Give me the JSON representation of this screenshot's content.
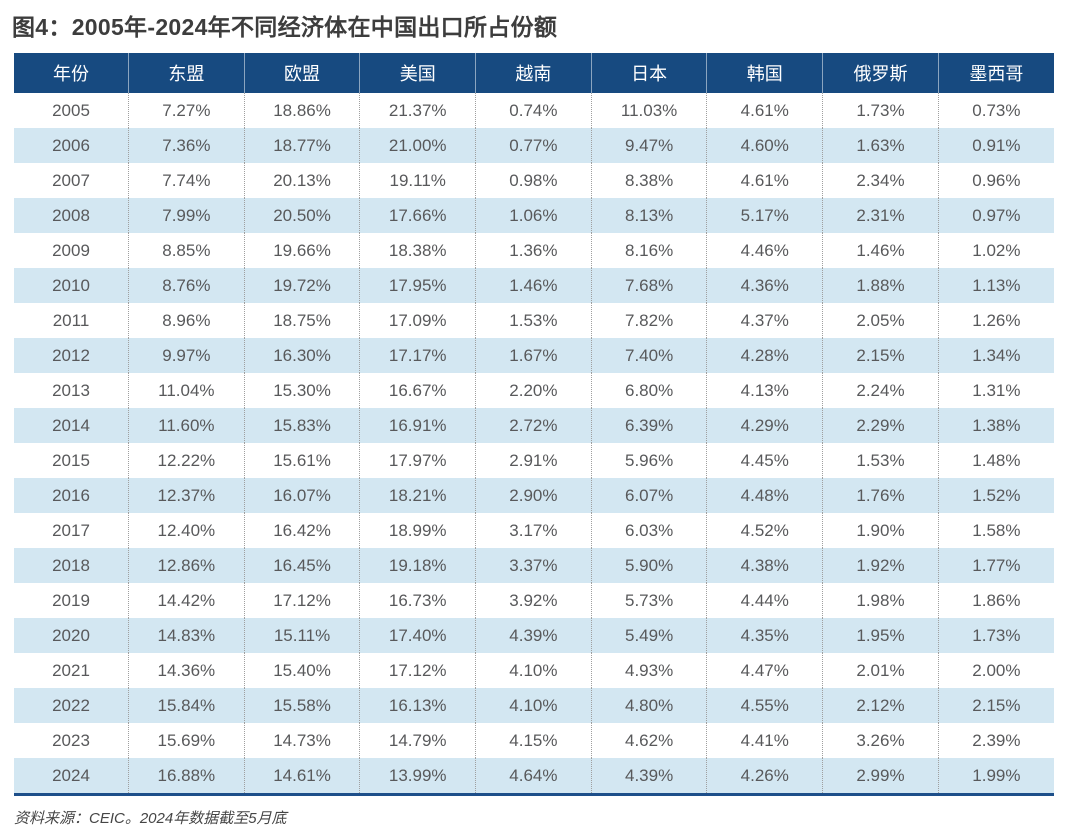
{
  "title": "图4：2005年-2024年不同经济体在中国出口所占份额",
  "source_note": "资料来源：CEIC。2024年数据截至5月底",
  "colors": {
    "header_bg": "#174a80",
    "header_text": "#ffffff",
    "stripe_bg": "#d3e7f2",
    "cell_text": "#58595b",
    "title_text": "#3d3d3d",
    "bottom_border": "#1d4f8a"
  },
  "chart_data": {
    "type": "table",
    "title": "图4：2005年-2024年不同经济体在中国出口所占份额",
    "columns": [
      "年份",
      "东盟",
      "欧盟",
      "美国",
      "越南",
      "日本",
      "韩国",
      "俄罗斯",
      "墨西哥"
    ],
    "rows": [
      [
        "2005",
        "7.27%",
        "18.86%",
        "21.37%",
        "0.74%",
        "11.03%",
        "4.61%",
        "1.73%",
        "0.73%"
      ],
      [
        "2006",
        "7.36%",
        "18.77%",
        "21.00%",
        "0.77%",
        "9.47%",
        "4.60%",
        "1.63%",
        "0.91%"
      ],
      [
        "2007",
        "7.74%",
        "20.13%",
        "19.11%",
        "0.98%",
        "8.38%",
        "4.61%",
        "2.34%",
        "0.96%"
      ],
      [
        "2008",
        "7.99%",
        "20.50%",
        "17.66%",
        "1.06%",
        "8.13%",
        "5.17%",
        "2.31%",
        "0.97%"
      ],
      [
        "2009",
        "8.85%",
        "19.66%",
        "18.38%",
        "1.36%",
        "8.16%",
        "4.46%",
        "1.46%",
        "1.02%"
      ],
      [
        "2010",
        "8.76%",
        "19.72%",
        "17.95%",
        "1.46%",
        "7.68%",
        "4.36%",
        "1.88%",
        "1.13%"
      ],
      [
        "2011",
        "8.96%",
        "18.75%",
        "17.09%",
        "1.53%",
        "7.82%",
        "4.37%",
        "2.05%",
        "1.26%"
      ],
      [
        "2012",
        "9.97%",
        "16.30%",
        "17.17%",
        "1.67%",
        "7.40%",
        "4.28%",
        "2.15%",
        "1.34%"
      ],
      [
        "2013",
        "11.04%",
        "15.30%",
        "16.67%",
        "2.20%",
        "6.80%",
        "4.13%",
        "2.24%",
        "1.31%"
      ],
      [
        "2014",
        "11.60%",
        "15.83%",
        "16.91%",
        "2.72%",
        "6.39%",
        "4.29%",
        "2.29%",
        "1.38%"
      ],
      [
        "2015",
        "12.22%",
        "15.61%",
        "17.97%",
        "2.91%",
        "5.96%",
        "4.45%",
        "1.53%",
        "1.48%"
      ],
      [
        "2016",
        "12.37%",
        "16.07%",
        "18.21%",
        "2.90%",
        "6.07%",
        "4.48%",
        "1.76%",
        "1.52%"
      ],
      [
        "2017",
        "12.40%",
        "16.42%",
        "18.99%",
        "3.17%",
        "6.03%",
        "4.52%",
        "1.90%",
        "1.58%"
      ],
      [
        "2018",
        "12.86%",
        "16.45%",
        "19.18%",
        "3.37%",
        "5.90%",
        "4.38%",
        "1.92%",
        "1.77%"
      ],
      [
        "2019",
        "14.42%",
        "17.12%",
        "16.73%",
        "3.92%",
        "5.73%",
        "4.44%",
        "1.98%",
        "1.86%"
      ],
      [
        "2020",
        "14.83%",
        "15.11%",
        "17.40%",
        "4.39%",
        "5.49%",
        "4.35%",
        "1.95%",
        "1.73%"
      ],
      [
        "2021",
        "14.36%",
        "15.40%",
        "17.12%",
        "4.10%",
        "4.93%",
        "4.47%",
        "2.01%",
        "2.00%"
      ],
      [
        "2022",
        "15.84%",
        "15.58%",
        "16.13%",
        "4.10%",
        "4.80%",
        "4.55%",
        "2.12%",
        "2.15%"
      ],
      [
        "2023",
        "15.69%",
        "14.73%",
        "14.79%",
        "4.15%",
        "4.62%",
        "4.41%",
        "3.26%",
        "2.39%"
      ],
      [
        "2024",
        "16.88%",
        "14.61%",
        "13.99%",
        "4.64%",
        "4.39%",
        "4.26%",
        "2.99%",
        "1.99%"
      ]
    ],
    "layout": {
      "striped": true,
      "striped_rows": "even",
      "header_position": "top",
      "bottom_rule": true
    }
  }
}
